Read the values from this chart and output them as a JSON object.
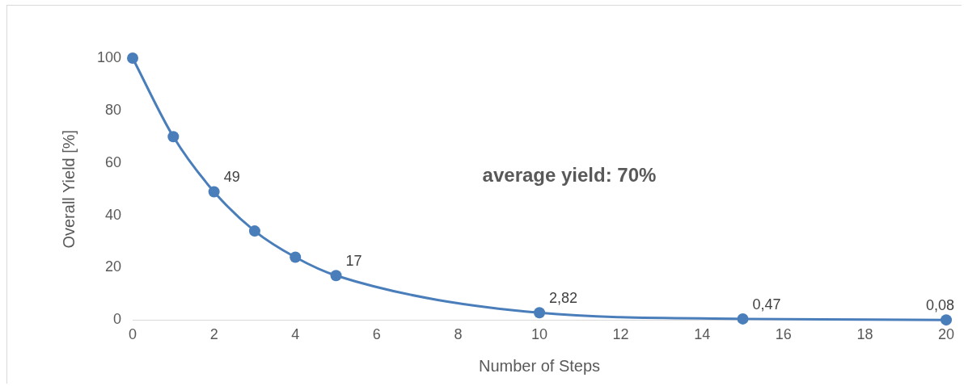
{
  "chart_data": {
    "type": "line",
    "xlabel": "Number of Steps",
    "ylabel": "Overall Yield [%]",
    "x": [
      0,
      1,
      2,
      3,
      4,
      5,
      10,
      15,
      20
    ],
    "series": [
      {
        "color": "#4a7ebb",
        "values": [
          100,
          70,
          49,
          34,
          24,
          17,
          2.82,
          0.47,
          0.08
        ],
        "value_labels": [
          null,
          null,
          "49",
          null,
          null,
          "17",
          "2,82",
          "0,47",
          "0,08"
        ]
      }
    ],
    "xlim": [
      0,
      20
    ],
    "xticks": [
      0,
      2,
      4,
      6,
      8,
      10,
      12,
      14,
      16,
      18,
      20
    ],
    "ylim": [
      0,
      100
    ],
    "yticks": [
      0,
      20,
      40,
      60,
      80,
      100
    ],
    "marker": "circle",
    "line_style": "solid",
    "annotations": [
      "average yield: 70%"
    ]
  }
}
